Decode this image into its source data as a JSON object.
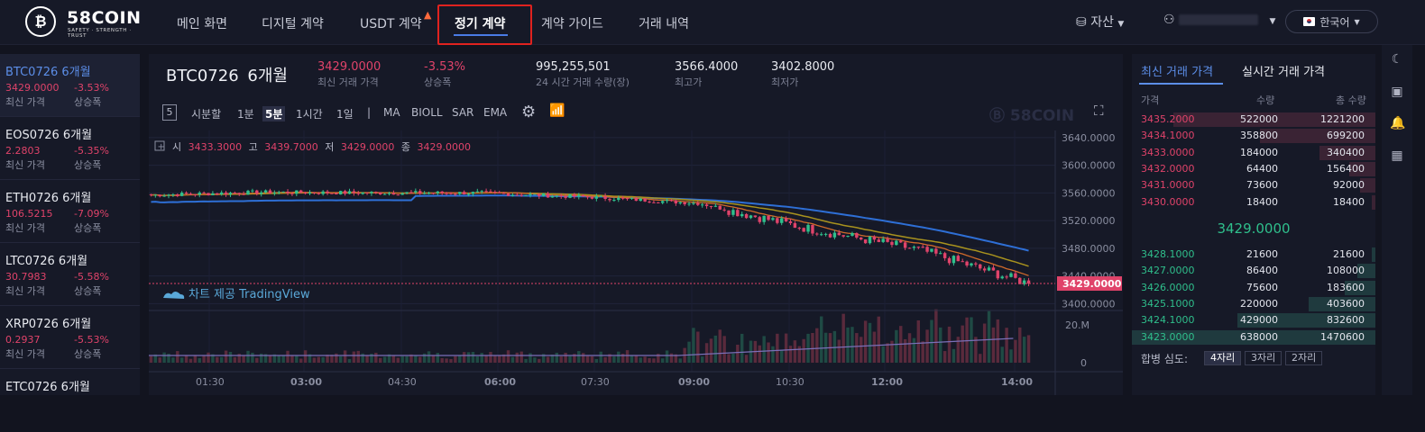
{
  "header": {
    "logo_text": "58COIN",
    "logo_tagline": "SAFETY · STRENGTH · TRUST",
    "logo_symbol": "₿",
    "nav": [
      "메인 화면",
      "디지털 계약",
      "USDT 계약",
      "정기 계약",
      "계약 가이드",
      "거래 내역"
    ],
    "assets_label": "자산",
    "language": "한국어"
  },
  "sidebar": {
    "items": [
      {
        "name": "BTC0726 6개월",
        "price": "3429.0000",
        "change": "-3.53%",
        "price_label": "최신 가격",
        "change_label": "상승폭"
      },
      {
        "name": "EOS0726 6개월",
        "price": "2.2803",
        "change": "-5.35%",
        "price_label": "최신 가격",
        "change_label": "상승폭"
      },
      {
        "name": "ETH0726 6개월",
        "price": "106.5215",
        "change": "-7.09%",
        "price_label": "최신 가격",
        "change_label": "상승폭"
      },
      {
        "name": "LTC0726 6개월",
        "price": "30.7983",
        "change": "-5.58%",
        "price_label": "최신 가격",
        "change_label": "상승폭"
      },
      {
        "name": "XRP0726 6개월",
        "price": "0.2937",
        "change": "-5.53%",
        "price_label": "최신 가격",
        "change_label": "상승폭"
      },
      {
        "name": "ETC0726 6개월"
      }
    ]
  },
  "ticker": {
    "symbol": "BTC0726",
    "period": "6개월",
    "last_price": "3429.0000",
    "last_price_label": "최신 거래 가격",
    "change": "-3.53%",
    "change_label": "상승폭",
    "volume": "995,255,501",
    "volume_label": "24 시간 거래 수량(장)",
    "high": "3566.4000",
    "high_label": "최고가",
    "low": "3402.8000",
    "low_label": "최저가"
  },
  "toolbar": {
    "box": "5",
    "intervals": [
      "시분할",
      "1분",
      "5분",
      "1시간",
      "1일"
    ],
    "active_interval": "5분",
    "sep": "|",
    "indicators": [
      "MA",
      "BIOLL",
      "SAR",
      "EMA"
    ],
    "watermark": "58COIN"
  },
  "ohlc": {
    "open_label": "시",
    "open": "3433.3000",
    "high_label": "고",
    "high": "3439.7000",
    "low_label": "저",
    "low": "3429.0000",
    "close_label": "종",
    "close": "3429.0000"
  },
  "chart": {
    "attribution": "차트 제공 TradingView",
    "price_ticks": [
      "3640.0000",
      "3600.0000",
      "3560.0000",
      "3520.0000",
      "3480.0000",
      "3440.0000",
      "3400.0000"
    ],
    "current_price_tag": "3429.0000",
    "volume_ticks": [
      "20.M",
      "0"
    ],
    "time_ticks": [
      "01:30",
      "03:00",
      "04:30",
      "06:00",
      "07:30",
      "09:00",
      "10:30",
      "12:00",
      "14:00"
    ],
    "colors": {
      "up": "#2fbf8c",
      "down": "#e0436a",
      "ma_blue": "#2e6fd6",
      "ma_olive": "#a8921e",
      "ma_orange": "#d06a2a"
    }
  },
  "chart_data": {
    "type": "candlestick",
    "x": [
      "01:30",
      "03:00",
      "04:30",
      "06:00",
      "07:30",
      "09:00",
      "10:30",
      "12:00",
      "14:00"
    ],
    "close_approx": [
      3557,
      3561,
      3560,
      3560,
      3554,
      3545,
      3508,
      3478,
      3429
    ],
    "ylim": [
      3390,
      3645
    ],
    "current": 3429.0,
    "volume_ylim": [
      0,
      20000000
    ]
  },
  "orderbook": {
    "tabs": [
      "최신 거래 가격",
      "실시간 거래 가격"
    ],
    "headers": [
      "가격",
      "수량",
      "총 수량"
    ],
    "asks": [
      {
        "price": "3435.2000",
        "qty": "522000",
        "total": "1221200"
      },
      {
        "price": "3434.1000",
        "qty": "358800",
        "total": "699200"
      },
      {
        "price": "3433.0000",
        "qty": "184000",
        "total": "340400"
      },
      {
        "price": "3432.0000",
        "qty": "64400",
        "total": "156400"
      },
      {
        "price": "3431.0000",
        "qty": "73600",
        "total": "92000"
      },
      {
        "price": "3430.0000",
        "qty": "18400",
        "total": "18400"
      }
    ],
    "last": "3429.0000",
    "bids": [
      {
        "price": "3428.1000",
        "qty": "21600",
        "total": "21600"
      },
      {
        "price": "3427.0000",
        "qty": "86400",
        "total": "108000"
      },
      {
        "price": "3426.0000",
        "qty": "75600",
        "total": "183600"
      },
      {
        "price": "3425.1000",
        "qty": "220000",
        "total": "403600"
      },
      {
        "price": "3424.1000",
        "qty": "429000",
        "total": "832600"
      },
      {
        "price": "3423.0000",
        "qty": "638000",
        "total": "1470600"
      }
    ],
    "depth_label": "합병 심도:",
    "depth_options": [
      "4자리",
      "3자리",
      "2자리"
    ]
  }
}
